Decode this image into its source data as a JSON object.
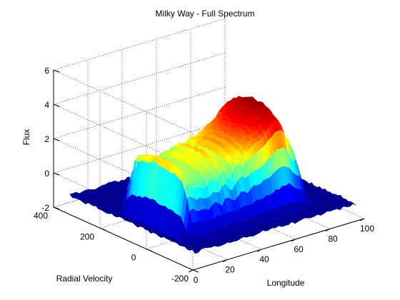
{
  "chart_data": {
    "type": "surface3d",
    "title": "Milky Way - Full Spectrum",
    "xlabel": "Longitude",
    "ylabel": "Radial Velocity",
    "zlabel": "Flux",
    "xlim": [
      0,
      100
    ],
    "ylim": [
      -200,
      400
    ],
    "zlim": [
      -2,
      6
    ],
    "xticks": [
      0,
      20,
      40,
      60,
      80,
      100
    ],
    "yticks": [
      -200,
      0,
      200,
      400
    ],
    "zticks": [
      -2,
      0,
      2,
      4,
      6
    ],
    "xtick_labels": [
      "0",
      "20",
      "40",
      "60",
      "80",
      "100"
    ],
    "ytick_labels": [
      "-200",
      "0",
      "200",
      "400"
    ],
    "ztick_labels": [
      "-2",
      "0",
      "2",
      "4",
      "6"
    ],
    "grid": true,
    "colormap": "jet",
    "colormap_stops": [
      "#00008f",
      "#0000ff",
      "#00ffff",
      "#ffff00",
      "#ff0000",
      "#800000"
    ],
    "baseline_flux": -1.2,
    "emission_velocity_range": [
      -110,
      170
    ],
    "ridge_profile": {
      "x": [
        0,
        2,
        4,
        6,
        8,
        10,
        12,
        14,
        16,
        18,
        20,
        22,
        24,
        26,
        28,
        30,
        32,
        34,
        36,
        38,
        40,
        42,
        44,
        46,
        48,
        50,
        52,
        54,
        56,
        58,
        60,
        62,
        64,
        66,
        68,
        70,
        72,
        74,
        76,
        78,
        80,
        82,
        84,
        86,
        88,
        90,
        92,
        94,
        96,
        98,
        100
      ],
      "peak_flux": [
        -1.2,
        -1.2,
        -1.2,
        -1.2,
        -1.2,
        0.6,
        3.0,
        2.6,
        2.2,
        2.0,
        2.4,
        1.8,
        2.0,
        2.6,
        2.3,
        2.0,
        2.6,
        2.8,
        2.2,
        2.0,
        2.6,
        2.9,
        3.0,
        2.6,
        3.1,
        3.2,
        3.3,
        3.5,
        3.6,
        3.8,
        4.0,
        4.2,
        4.5,
        4.6,
        4.5,
        4.0,
        3.2,
        3.0,
        2.4,
        1.2,
        -0.4,
        -1.0,
        -1.2,
        -1.2,
        -1.2,
        -1.2,
        -1.2,
        -1.2,
        -1.2,
        -1.2,
        -1.2
      ]
    }
  }
}
